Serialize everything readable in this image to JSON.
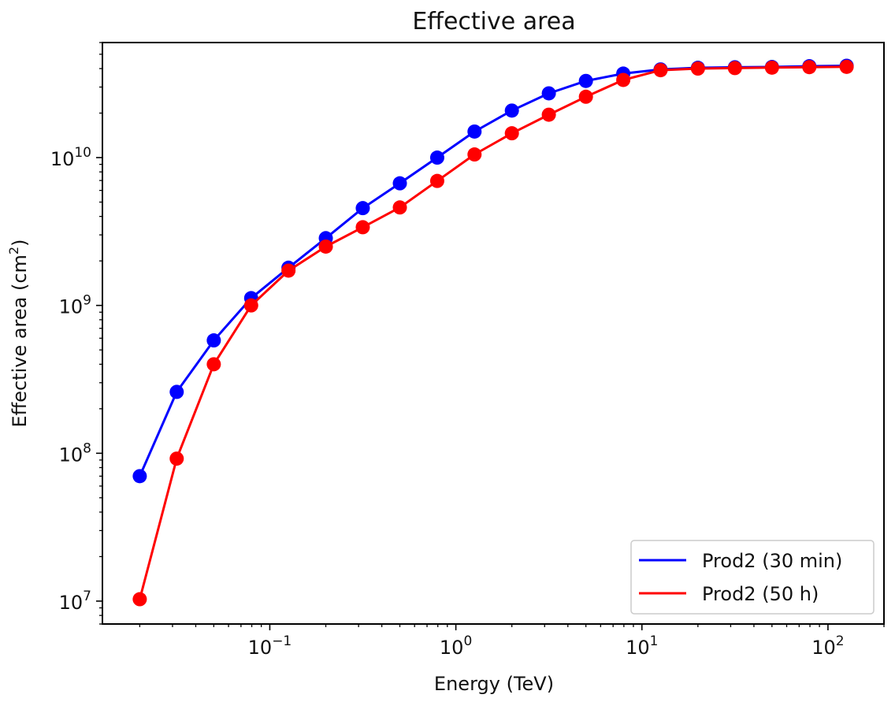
{
  "chart_data": {
    "type": "line",
    "title": "Effective area",
    "xlabel": "Energy (TeV)",
    "ylabel": "Effective area (cm",
    "ylabel_sup": "2",
    "ylabel_close": ")",
    "xscale": "log",
    "yscale": "log",
    "xlim": [
      0.0126,
      200
    ],
    "ylim": [
      7000000,
      60000000000
    ],
    "xticks": [
      {
        "value": 0.1,
        "base": "10",
        "exp": "−1"
      },
      {
        "value": 1,
        "base": "10",
        "exp": "0"
      },
      {
        "value": 10,
        "base": "10",
        "exp": "1"
      },
      {
        "value": 100,
        "base": "10",
        "exp": "2"
      }
    ],
    "yticks": [
      {
        "value": 10000000,
        "base": "10",
        "exp": "7"
      },
      {
        "value": 100000000,
        "base": "10",
        "exp": "8"
      },
      {
        "value": 1000000000,
        "base": "10",
        "exp": "9"
      },
      {
        "value": 10000000000,
        "base": "10",
        "exp": "10"
      }
    ],
    "x": [
      0.02,
      0.0316,
      0.05,
      0.0794,
      0.126,
      0.2,
      0.316,
      0.5,
      0.794,
      1.26,
      2.0,
      3.16,
      5.0,
      7.94,
      12.6,
      20.0,
      31.6,
      50.0,
      79.4,
      126
    ],
    "series": [
      {
        "name": "Prod2 (30 min)",
        "color": "#0000ff",
        "values": [
          70000000,
          260000000,
          580000000,
          1120000000,
          1800000000,
          2850000000,
          4550000000,
          6700000000,
          10000000000,
          15000000000,
          20800000000,
          27200000000,
          33000000000,
          37000000000,
          39500000000,
          40500000000,
          40800000000,
          41000000000,
          41500000000,
          41800000000
        ]
      },
      {
        "name": "Prod2 (50 h)",
        "color": "#ff0000",
        "values": [
          10300000,
          92000000,
          400000000,
          1000000000,
          1720000000,
          2500000000,
          3380000000,
          4600000000,
          6950000000,
          10500000000,
          14600000000,
          19500000000,
          25800000000,
          33500000000,
          39000000000,
          40000000000,
          40300000000,
          40600000000,
          40900000000,
          41100000000
        ]
      }
    ],
    "legend": {
      "placement": "bottom-right"
    },
    "grid": false
  }
}
